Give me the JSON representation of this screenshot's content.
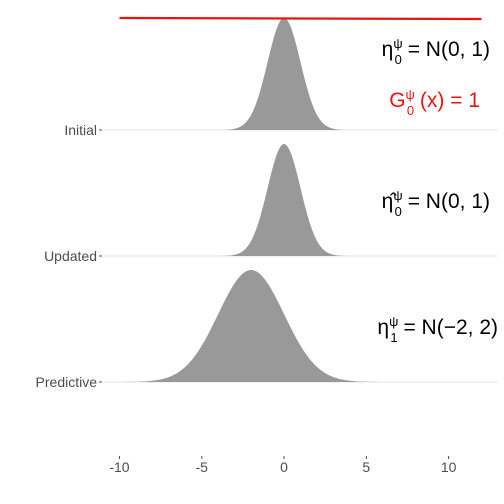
{
  "chart_data": {
    "type": "area",
    "title": "",
    "xlabel": "",
    "ylabel": "",
    "xlim": [
      -11,
      13
    ],
    "x_ticks": [
      -10,
      -5,
      0,
      5,
      10
    ],
    "x_tick_labels": [
      "-10",
      "-5",
      "0",
      "5",
      "10"
    ],
    "categories": [
      "Initial",
      "Updated",
      "Predictive"
    ],
    "series": [
      {
        "name": "",
        "category": "Initial",
        "distribution": "normal",
        "mean": 0,
        "sd": 1,
        "fill": "#999999"
      },
      {
        "name": "",
        "category": "Updated",
        "distribution": "normal",
        "mean": 0,
        "sd": 1,
        "fill": "#999999"
      },
      {
        "name": "",
        "category": "Predictive",
        "distribution": "normal",
        "mean": -2,
        "sd": 2,
        "fill": "#999999"
      }
    ],
    "reference_line": {
      "label": "G_0^ψ(x) = 1",
      "x_range": [
        -10,
        12
      ],
      "color": "#ee1111"
    },
    "annotations": [
      {
        "row": "Initial",
        "text_parts": [
          "η",
          "0",
          "ψ",
          " = N(0, 1)"
        ],
        "color": "#000000"
      },
      {
        "row": "Initial",
        "text_parts": [
          "G",
          "0",
          "ψ",
          " (x) = 1"
        ],
        "color": "#ee1111"
      },
      {
        "row": "Updated",
        "text_parts": [
          "η̂",
          "0",
          "ψ",
          " = N(0, 1)"
        ],
        "color": "#000000"
      },
      {
        "row": "Predictive",
        "text_parts": [
          "η",
          "1",
          "ψ",
          " = N(−2, 2)"
        ],
        "color": "#000000"
      }
    ],
    "grid": true,
    "legend": "none"
  }
}
